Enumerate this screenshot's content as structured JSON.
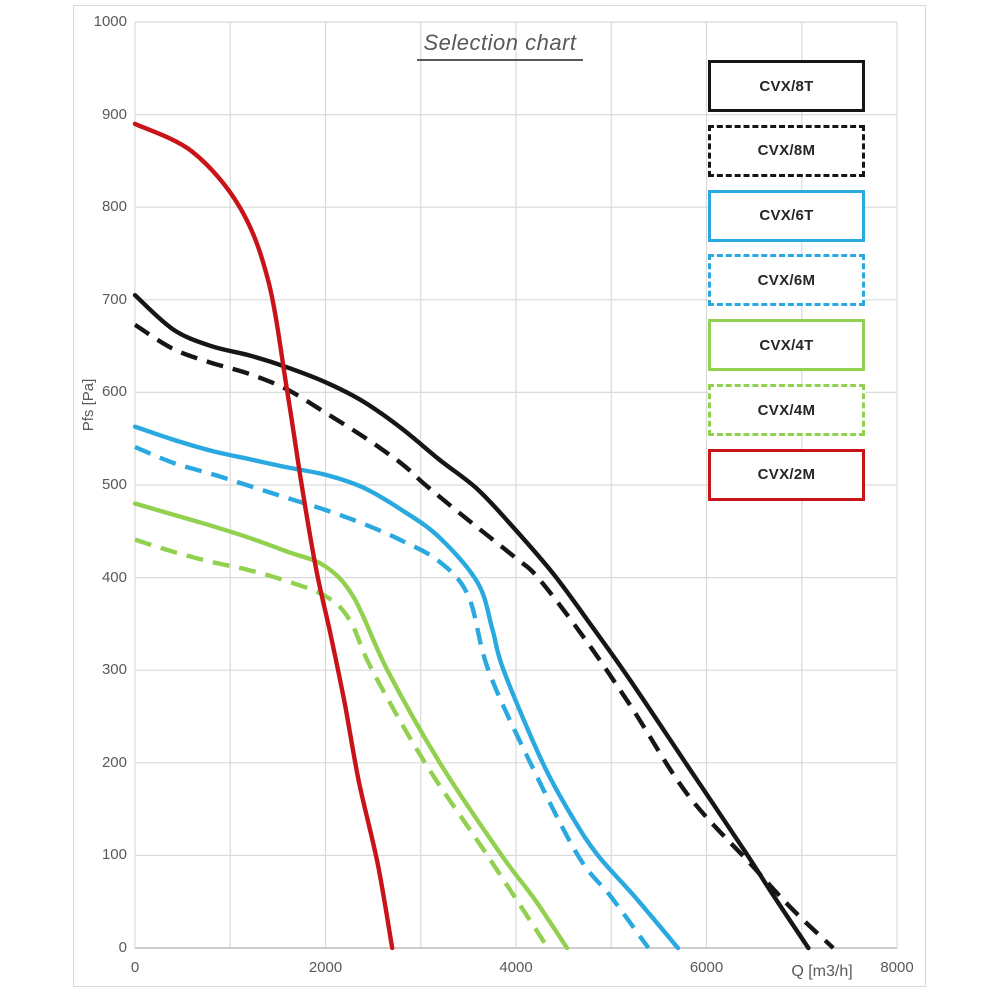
{
  "title": "Selection chart",
  "axes": {
    "y_label": "Pfs [Pa]",
    "x_label": "Q [m3/h]",
    "y_ticks": [
      1000,
      900,
      800,
      700,
      600,
      500,
      400,
      300,
      200,
      100,
      0
    ],
    "x_ticks": [
      0,
      2000,
      4000,
      6000,
      8000
    ]
  },
  "colors": {
    "black": "#161616",
    "blue": "#29a9df",
    "green": "#92d050",
    "red": "#c81419",
    "gridline": "#dadada",
    "axis_text": "#595959"
  },
  "legend": {
    "position": "top-right",
    "items": [
      "CVX/8T",
      "CVX/8M",
      "CVX/6T",
      "CVX/6M",
      "CVX/4T",
      "CVX/4M",
      "CVX/2M"
    ]
  },
  "chart_data": {
    "type": "line",
    "title": "Selection chart",
    "xlabel": "Q [m3/h]",
    "ylabel": "Pfs [Pa]",
    "xlim": [
      0,
      8000
    ],
    "ylim": [
      0,
      1000
    ],
    "x_gridline_step": 1000,
    "y_gridline_step": 100,
    "grid": true,
    "legend_position": "top-right",
    "series": [
      {
        "name": "CVX/8T",
        "color": "#161616",
        "style": "solid",
        "points": [
          [
            0,
            705
          ],
          [
            400,
            668
          ],
          [
            800,
            650
          ],
          [
            1200,
            640
          ],
          [
            1600,
            627
          ],
          [
            2000,
            611
          ],
          [
            2400,
            590
          ],
          [
            2800,
            561
          ],
          [
            3200,
            527
          ],
          [
            3600,
            495
          ],
          [
            4000,
            451
          ],
          [
            4400,
            403
          ],
          [
            4800,
            347
          ],
          [
            5200,
            289
          ],
          [
            5800,
            197
          ],
          [
            6400,
            105
          ],
          [
            6700,
            57
          ],
          [
            7070,
            0
          ]
        ]
      },
      {
        "name": "CVX/8M",
        "color": "#161616",
        "style": "dashed",
        "points": [
          [
            0,
            673
          ],
          [
            400,
            647
          ],
          [
            800,
            632
          ],
          [
            1200,
            620
          ],
          [
            1600,
            603
          ],
          [
            2000,
            578
          ],
          [
            2400,
            552
          ],
          [
            2800,
            523
          ],
          [
            3050,
            500
          ],
          [
            3500,
            462
          ],
          [
            4000,
            421
          ],
          [
            4230,
            400
          ],
          [
            4700,
            337
          ],
          [
            5200,
            262
          ],
          [
            5800,
            166
          ],
          [
            6470,
            90
          ],
          [
            6900,
            42
          ],
          [
            7330,
            0
          ]
        ]
      },
      {
        "name": "CVX/6T",
        "color": "#29a9df",
        "style": "solid",
        "points": [
          [
            0,
            563
          ],
          [
            400,
            549
          ],
          [
            800,
            537
          ],
          [
            1200,
            528
          ],
          [
            1600,
            519
          ],
          [
            2000,
            511
          ],
          [
            2400,
            497
          ],
          [
            2800,
            473
          ],
          [
            3200,
            443
          ],
          [
            3600,
            394
          ],
          [
            3750,
            345
          ],
          [
            3870,
            300
          ],
          [
            4280,
            200
          ],
          [
            4600,
            140
          ],
          [
            4860,
            100
          ],
          [
            5250,
            55
          ],
          [
            5700,
            0
          ]
        ]
      },
      {
        "name": "CVX/6M",
        "color": "#29a9df",
        "style": "dashed",
        "points": [
          [
            0,
            541
          ],
          [
            400,
            524
          ],
          [
            800,
            512
          ],
          [
            1200,
            499
          ],
          [
            1600,
            486
          ],
          [
            2000,
            473
          ],
          [
            2400,
            458
          ],
          [
            2800,
            440
          ],
          [
            3200,
            417
          ],
          [
            3500,
            380
          ],
          [
            3710,
            300
          ],
          [
            4150,
            200
          ],
          [
            4650,
            100
          ],
          [
            5000,
            55
          ],
          [
            5390,
            0
          ]
        ]
      },
      {
        "name": "CVX/4T",
        "color": "#92d050",
        "style": "solid",
        "points": [
          [
            0,
            480
          ],
          [
            400,
            468
          ],
          [
            800,
            456
          ],
          [
            1200,
            443
          ],
          [
            1600,
            428
          ],
          [
            2000,
            412
          ],
          [
            2300,
            378
          ],
          [
            2650,
            300
          ],
          [
            3200,
            200
          ],
          [
            3850,
            100
          ],
          [
            4200,
            52
          ],
          [
            4535,
            0
          ]
        ]
      },
      {
        "name": "CVX/4M",
        "color": "#92d050",
        "style": "dashed",
        "points": [
          [
            0,
            441
          ],
          [
            400,
            428
          ],
          [
            800,
            417
          ],
          [
            1200,
            408
          ],
          [
            1600,
            396
          ],
          [
            2000,
            380
          ],
          [
            2250,
            355
          ],
          [
            2490,
            300
          ],
          [
            3045,
            200
          ],
          [
            3700,
            100
          ],
          [
            4336,
            0
          ]
        ]
      },
      {
        "name": "CVX/2M",
        "color": "#c81419",
        "style": "solid",
        "points": [
          [
            0,
            890
          ],
          [
            600,
            860
          ],
          [
            1100,
            800
          ],
          [
            1400,
            720
          ],
          [
            1600,
            600
          ],
          [
            1750,
            500
          ],
          [
            1900,
            410
          ],
          [
            2050,
            340
          ],
          [
            2200,
            265
          ],
          [
            2350,
            180
          ],
          [
            2550,
            90
          ],
          [
            2700,
            0
          ]
        ]
      }
    ]
  }
}
